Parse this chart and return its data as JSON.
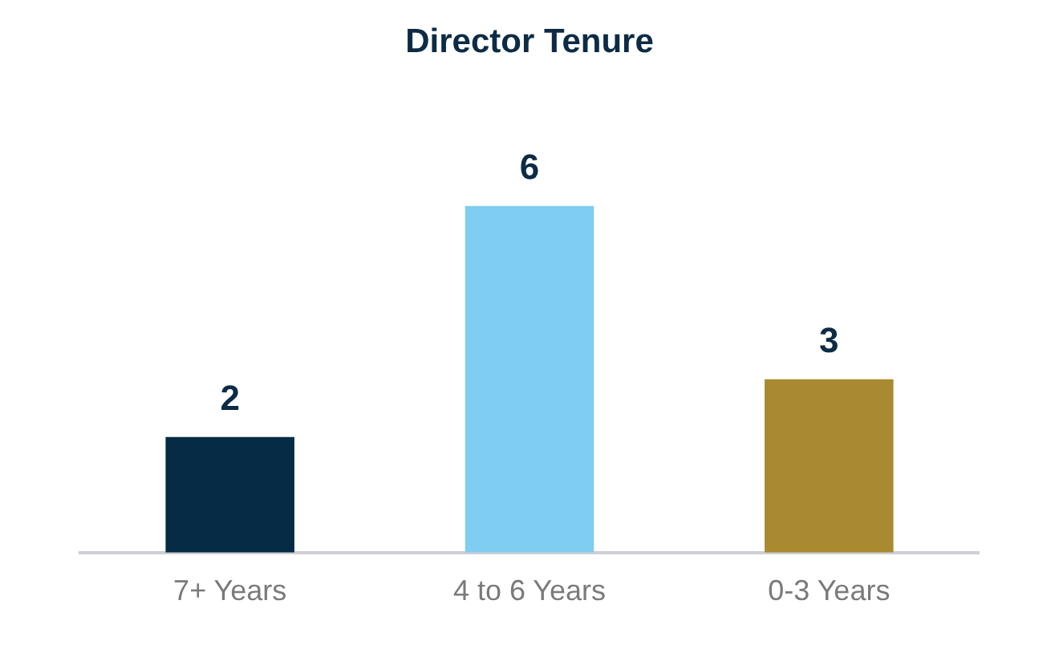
{
  "chart_data": {
    "type": "bar",
    "title": "Director Tenure",
    "categories": [
      "7+ Years",
      "4 to 6 Years",
      "0-3 Years"
    ],
    "values": [
      2,
      6,
      3
    ],
    "colors": [
      "#062b45",
      "#7fcdf0",
      "#a98a30"
    ],
    "data_labels": true,
    "grid": false,
    "legend": false
  }
}
